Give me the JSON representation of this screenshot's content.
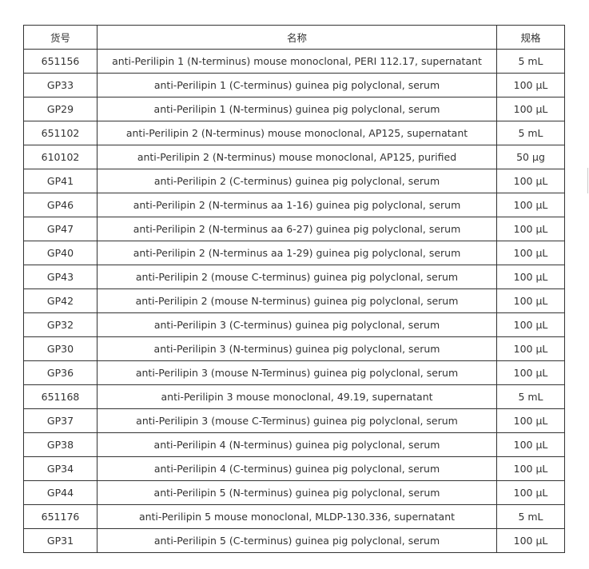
{
  "table": {
    "headers": [
      "货号",
      "名称",
      "规格"
    ],
    "rows": [
      [
        "651156",
        "anti-Perilipin 1 (N-terminus) mouse monoclonal, PERI 112.17, supernatant",
        "5 mL"
      ],
      [
        "GP33",
        "anti-Perilipin 1 (C-terminus) guinea pig polyclonal, serum",
        "100 µL"
      ],
      [
        "GP29",
        "anti-Perilipin 1 (N-terminus) guinea pig polyclonal, serum",
        "100 µL"
      ],
      [
        "651102",
        "anti-Perilipin 2 (N-terminus) mouse monoclonal, AP125, supernatant",
        "5 mL"
      ],
      [
        "610102",
        "anti-Perilipin 2 (N-terminus) mouse monoclonal, AP125, purified",
        "50 µg"
      ],
      [
        "GP41",
        "anti-Perilipin 2 (C-terminus) guinea pig polyclonal, serum",
        "100 µL"
      ],
      [
        "GP46",
        "anti-Perilipin 2 (N-terminus aa 1-16) guinea pig polyclonal, serum",
        "100 µL"
      ],
      [
        "GP47",
        "anti-Perilipin 2 (N-terminus aa 6-27) guinea pig polyclonal, serum",
        "100 µL"
      ],
      [
        "GP40",
        "anti-Perilipin 2 (N-terminus aa 1-29) guinea pig polyclonal, serum",
        "100 µL"
      ],
      [
        "GP43",
        "anti-Perilipin 2 (mouse C-terminus) guinea pig polyclonal, serum",
        "100 µL"
      ],
      [
        "GP42",
        "anti-Perilipin 2 (mouse N-terminus) guinea pig polyclonal, serum",
        "100 µL"
      ],
      [
        "GP32",
        "anti-Perilipin 3 (C-terminus) guinea pig polyclonal, serum",
        "100 µL"
      ],
      [
        "GP30",
        "anti-Perilipin 3 (N-terminus) guinea pig polyclonal, serum",
        "100 µL"
      ],
      [
        "GP36",
        "anti-Perilipin 3 (mouse N-Terminus) guinea pig polyclonal, serum",
        "100 µL"
      ],
      [
        "651168",
        "anti-Perilipin 3 mouse monoclonal, 49.19, supernatant",
        "5 mL"
      ],
      [
        "GP37",
        "anti-Perilipin 3 (mouse C-Terminus) guinea pig polyclonal, serum",
        "100 µL"
      ],
      [
        "GP38",
        "anti-Perilipin 4 (N-terminus) guinea pig polyclonal, serum",
        "100 µL"
      ],
      [
        "GP34",
        "anti-Perilipin 4 (C-terminus) guinea pig polyclonal, serum",
        "100 µL"
      ],
      [
        "GP44",
        "anti-Perilipin 5 (N-terminus) guinea pig polyclonal, serum",
        "100 µL"
      ],
      [
        "651176",
        "anti-Perilipin 5 mouse monoclonal, MLDP-130.336, supernatant",
        "5 mL"
      ],
      [
        "GP31",
        "anti-Perilipin 5 (C-terminus) guinea pig polyclonal, serum",
        "100 µL"
      ]
    ]
  }
}
